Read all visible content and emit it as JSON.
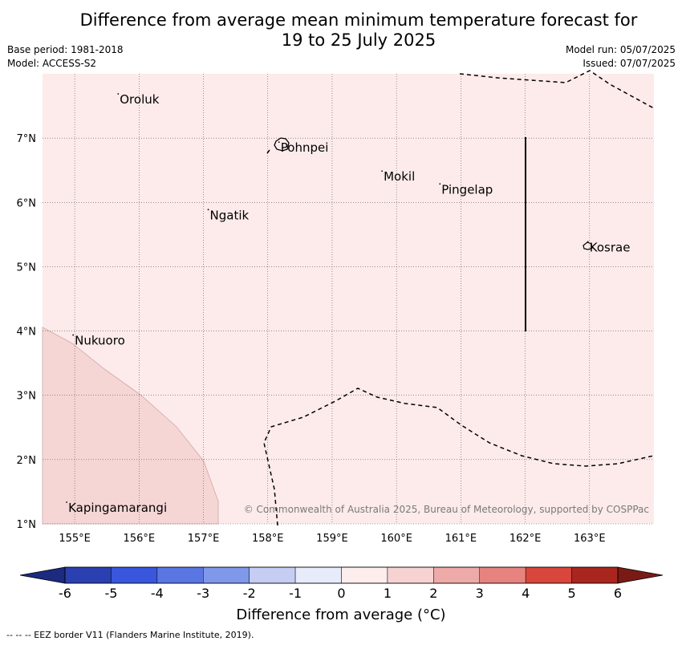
{
  "title": {
    "line1": "Difference from average mean minimum temperature forecast for",
    "line2": "19 to 25 July 2025"
  },
  "meta_left": {
    "base_period": "Base period: 1981-2018",
    "model": "Model: ACCESS-S2"
  },
  "meta_right": {
    "model_run": "Model run: 05/07/2025",
    "issued": "Issued: 07/07/2025"
  },
  "map": {
    "lon_range": [
      154.5,
      164.0
    ],
    "lat_range": [
      1.0,
      8.0
    ],
    "lon_ticks": [
      "155°E",
      "156°E",
      "157°E",
      "158°E",
      "159°E",
      "160°E",
      "161°E",
      "162°E",
      "163°E"
    ],
    "lat_ticks": [
      "1°N",
      "2°N",
      "3°N",
      "4°N",
      "5°N",
      "6°N",
      "7°N"
    ],
    "background_anomaly_class": "0 to 1",
    "background_color": "#fcebea",
    "region_anomaly_class": "1 to 2",
    "region_color": "#f5d6d5",
    "places": [
      {
        "name": "Oroluk",
        "lon": 155.7,
        "lat": 7.6
      },
      {
        "name": "Pohnpei",
        "lon": 158.2,
        "lat": 6.85
      },
      {
        "name": "Mokil",
        "lon": 159.8,
        "lat": 6.4
      },
      {
        "name": "Pingelap",
        "lon": 160.7,
        "lat": 6.2
      },
      {
        "name": "Ngatik",
        "lon": 157.1,
        "lat": 5.8
      },
      {
        "name": "Kosrae",
        "lon": 163.0,
        "lat": 5.3
      },
      {
        "name": "Nukuoro",
        "lon": 155.0,
        "lat": 3.85
      },
      {
        "name": "Kapingamarangi",
        "lon": 154.9,
        "lat": 1.25
      }
    ],
    "copyright": "© Commonwealth of Australia 2025, Bureau of Meteorology, supported by COSPPac"
  },
  "colorbar": {
    "ticks": [
      "-6",
      "-5",
      "-4",
      "-3",
      "-2",
      "-1",
      "0",
      "1",
      "2",
      "3",
      "4",
      "5",
      "6"
    ],
    "colors": [
      "#2a3fb0",
      "#3a56dd",
      "#5a76e3",
      "#8098ea",
      "#c6cdf3",
      "#e8ebfa",
      "#fdeeed",
      "#f6d3d2",
      "#eeaaa8",
      "#e6837f",
      "#d9463b",
      "#a9261f"
    ],
    "under_color": "#1c2a80",
    "over_color": "#7a1a15",
    "label": "Difference from average (°C)"
  },
  "credit": "--  --  -- EEZ border V11 (Flanders Marine Institute, 2019)."
}
